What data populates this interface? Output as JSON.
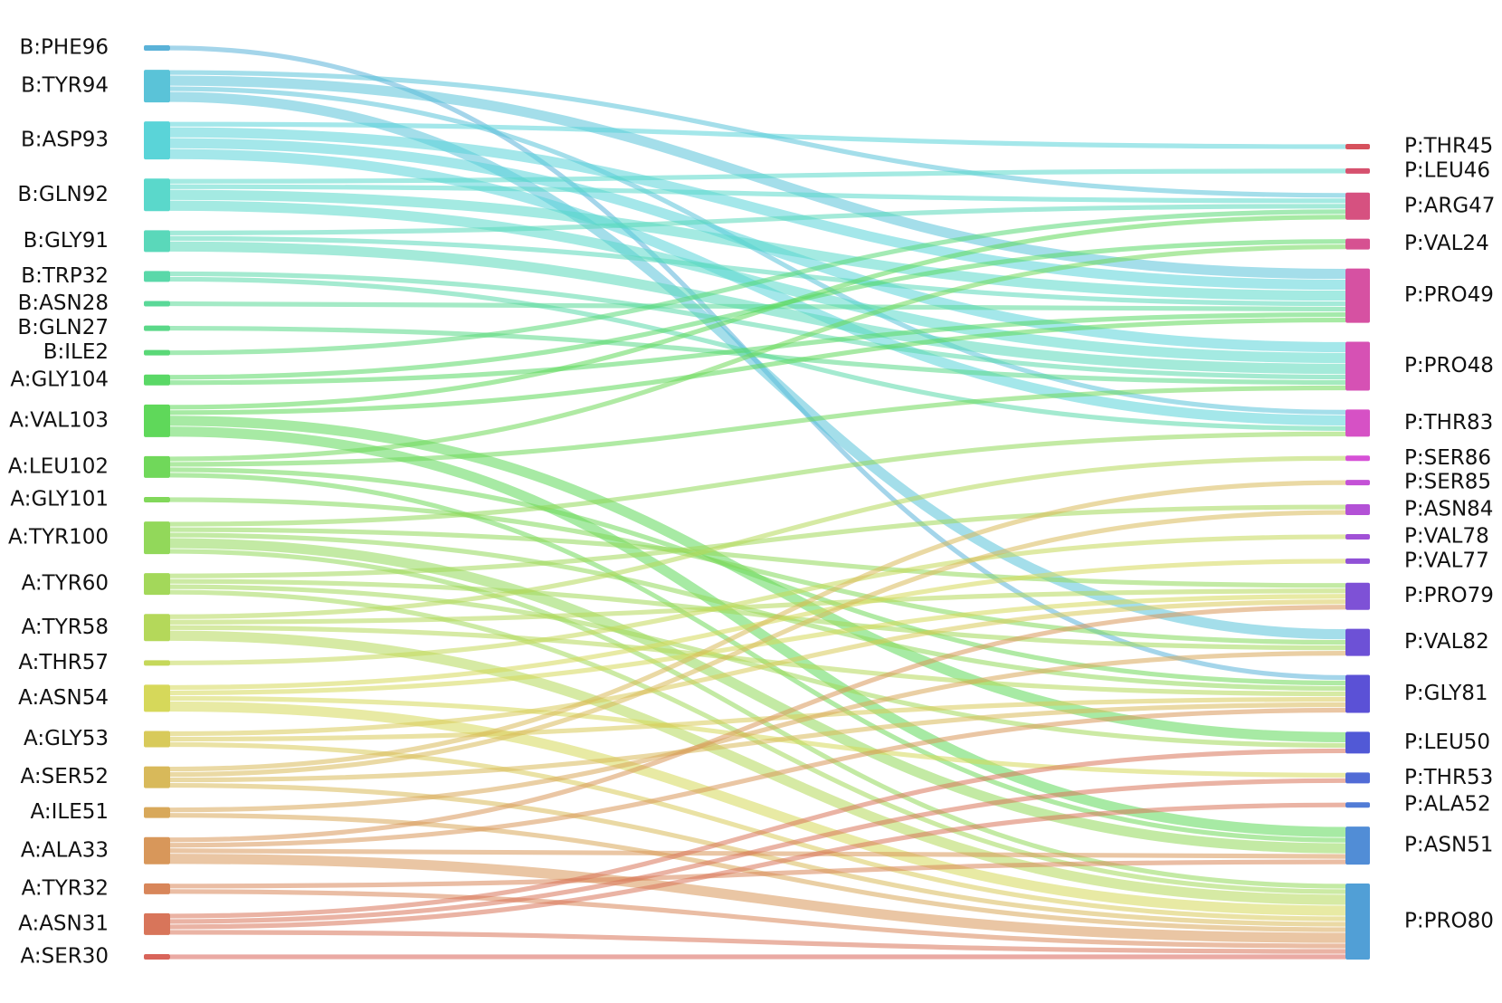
{
  "sankey": {
    "sources": [
      "B:PHE96",
      "B:TYR94",
      "B:ASP93",
      "B:GLN92",
      "B:GLY91",
      "B:TRP32",
      "B:ASN28",
      "B:GLN27",
      "B:ILE2",
      "A:GLY104",
      "A:VAL103",
      "A:LEU102",
      "A:GLY101",
      "A:TYR100",
      "A:TYR60",
      "A:TYR58",
      "A:THR57",
      "A:ASN54",
      "A:GLY53",
      "A:SER52",
      "A:ILE51",
      "A:ALA33",
      "A:TYR32",
      "A:ASN31",
      "A:SER30"
    ],
    "targets": [
      "P:THR45",
      "P:LEU46",
      "P:ARG47",
      "P:VAL24",
      "P:PRO49",
      "P:PRO48",
      "P:THR83",
      "P:SER86",
      "P:SER85",
      "P:ASN84",
      "P:VAL78",
      "P:VAL77",
      "P:PRO79",
      "P:VAL82",
      "P:GLY81",
      "P:LEU50",
      "P:THR53",
      "P:ALA52",
      "P:ASN51",
      "P:PRO80"
    ],
    "links": [
      [
        0,
        14,
        1
      ],
      [
        1,
        2,
        1
      ],
      [
        1,
        4,
        2
      ],
      [
        1,
        6,
        1
      ],
      [
        1,
        13,
        2
      ],
      [
        2,
        0,
        1
      ],
      [
        2,
        4,
        2
      ],
      [
        2,
        5,
        2
      ],
      [
        2,
        6,
        2
      ],
      [
        3,
        1,
        1
      ],
      [
        3,
        2,
        1
      ],
      [
        3,
        4,
        2
      ],
      [
        3,
        5,
        2
      ],
      [
        4,
        2,
        1
      ],
      [
        4,
        4,
        1
      ],
      [
        4,
        5,
        2
      ],
      [
        5,
        5,
        1
      ],
      [
        5,
        6,
        1
      ],
      [
        6,
        4,
        1
      ],
      [
        7,
        5,
        1
      ],
      [
        8,
        2,
        1
      ],
      [
        9,
        3,
        1
      ],
      [
        9,
        4,
        1
      ],
      [
        10,
        2,
        1
      ],
      [
        10,
        4,
        1
      ],
      [
        10,
        15,
        2
      ],
      [
        10,
        18,
        2
      ],
      [
        11,
        3,
        1
      ],
      [
        11,
        5,
        1
      ],
      [
        11,
        14,
        1
      ],
      [
        11,
        18,
        1
      ],
      [
        12,
        13,
        1
      ],
      [
        13,
        6,
        1
      ],
      [
        13,
        12,
        1
      ],
      [
        13,
        14,
        1
      ],
      [
        13,
        18,
        2
      ],
      [
        13,
        19,
        1
      ],
      [
        14,
        9,
        1
      ],
      [
        14,
        13,
        1
      ],
      [
        14,
        15,
        1
      ],
      [
        14,
        19,
        1
      ],
      [
        15,
        7,
        1
      ],
      [
        15,
        12,
        1
      ],
      [
        15,
        14,
        1
      ],
      [
        15,
        19,
        2
      ],
      [
        16,
        10,
        1
      ],
      [
        17,
        11,
        1
      ],
      [
        17,
        12,
        1
      ],
      [
        17,
        16,
        1
      ],
      [
        17,
        19,
        2
      ],
      [
        18,
        12,
        1
      ],
      [
        18,
        14,
        1
      ],
      [
        18,
        19,
        1
      ],
      [
        19,
        8,
        1
      ],
      [
        19,
        9,
        1
      ],
      [
        19,
        14,
        1
      ],
      [
        19,
        19,
        1
      ],
      [
        20,
        13,
        1
      ],
      [
        20,
        19,
        1
      ],
      [
        21,
        12,
        1
      ],
      [
        21,
        14,
        1
      ],
      [
        21,
        18,
        1
      ],
      [
        21,
        19,
        2
      ],
      [
        22,
        18,
        1
      ],
      [
        22,
        19,
        1
      ],
      [
        23,
        15,
        1
      ],
      [
        23,
        16,
        1
      ],
      [
        23,
        17,
        1
      ],
      [
        23,
        19,
        1
      ],
      [
        24,
        19,
        1
      ]
    ]
  }
}
